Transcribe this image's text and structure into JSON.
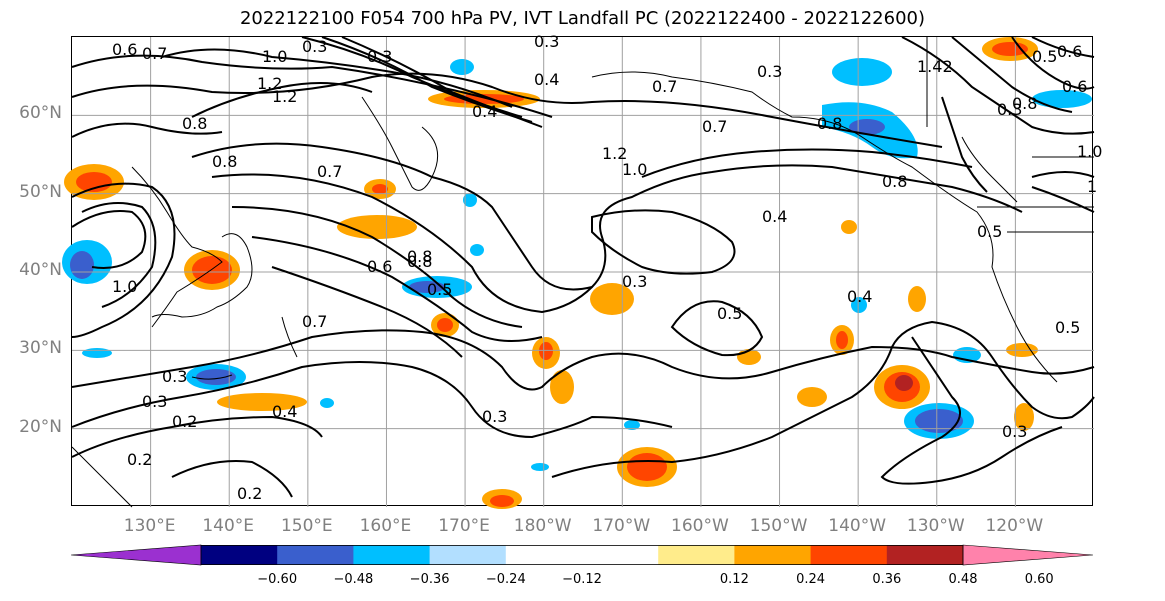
{
  "title": "2022122100 F054 700 hPa PV, IVT Landfall PC (2022122400 - 2022122600)",
  "map": {
    "lat_labels": [
      {
        "text": "60°N",
        "lat": 60
      },
      {
        "text": "50°N",
        "lat": 50
      },
      {
        "text": "40°N",
        "lat": 40
      },
      {
        "text": "30°N",
        "lat": 30
      },
      {
        "text": "20°N",
        "lat": 20
      }
    ],
    "lon_labels": [
      {
        "text": "130°E",
        "lon": 130
      },
      {
        "text": "140°E",
        "lon": 140
      },
      {
        "text": "150°E",
        "lon": 150
      },
      {
        "text": "160°E",
        "lon": 160
      },
      {
        "text": "170°E",
        "lon": 170
      },
      {
        "text": "180°W",
        "lon": 180
      },
      {
        "text": "170°W",
        "lon": 190
      },
      {
        "text": "160°W",
        "lon": 200
      },
      {
        "text": "150°W",
        "lon": 210
      },
      {
        "text": "140°W",
        "lon": 220
      },
      {
        "text": "130°W",
        "lon": 230
      },
      {
        "text": "120°W",
        "lon": 240
      }
    ],
    "extent": {
      "lon_min": 120,
      "lon_max": 250,
      "lat_min": 10,
      "lat_max": 70
    },
    "contour_labels": [
      "0.6",
      "0.7",
      "0.3",
      "0.3",
      "0.4",
      "0.3",
      "1.0",
      "1.2",
      "0.8",
      "0.8",
      "0.4",
      "0.7",
      "0.3",
      "1.42",
      "0.5",
      "0.6",
      "0.8",
      "0.7",
      "0.8",
      "0.6",
      "1.0",
      "1.2",
      "1.0",
      "0.7",
      "0.8",
      "0.4",
      "0.5",
      "0.8",
      "0.6",
      "0.8",
      "0.5",
      "0.3",
      "0.5",
      "0.4",
      "0.3",
      "1.0",
      "0.7",
      "0.3",
      "0.4",
      "0.3",
      "0.2",
      "0.2",
      "0.2",
      "0.3",
      "1.2",
      "0.3",
      "0.5",
      "1"
    ]
  },
  "colorbar": {
    "colors": [
      "#9b30d0",
      "#000080",
      "#3a5fcd",
      "#00bfff",
      "#b2dfff",
      "#ffffff",
      "#ffffff",
      "#ffec8b",
      "#ffa500",
      "#ff4500",
      "#b22222",
      "#ff82ab"
    ],
    "tick_labels": [
      "−0.60",
      "−0.48",
      "−0.36",
      "−0.24",
      "−0.12",
      "0.12",
      "0.24",
      "0.36",
      "0.48",
      "0.60"
    ]
  }
}
